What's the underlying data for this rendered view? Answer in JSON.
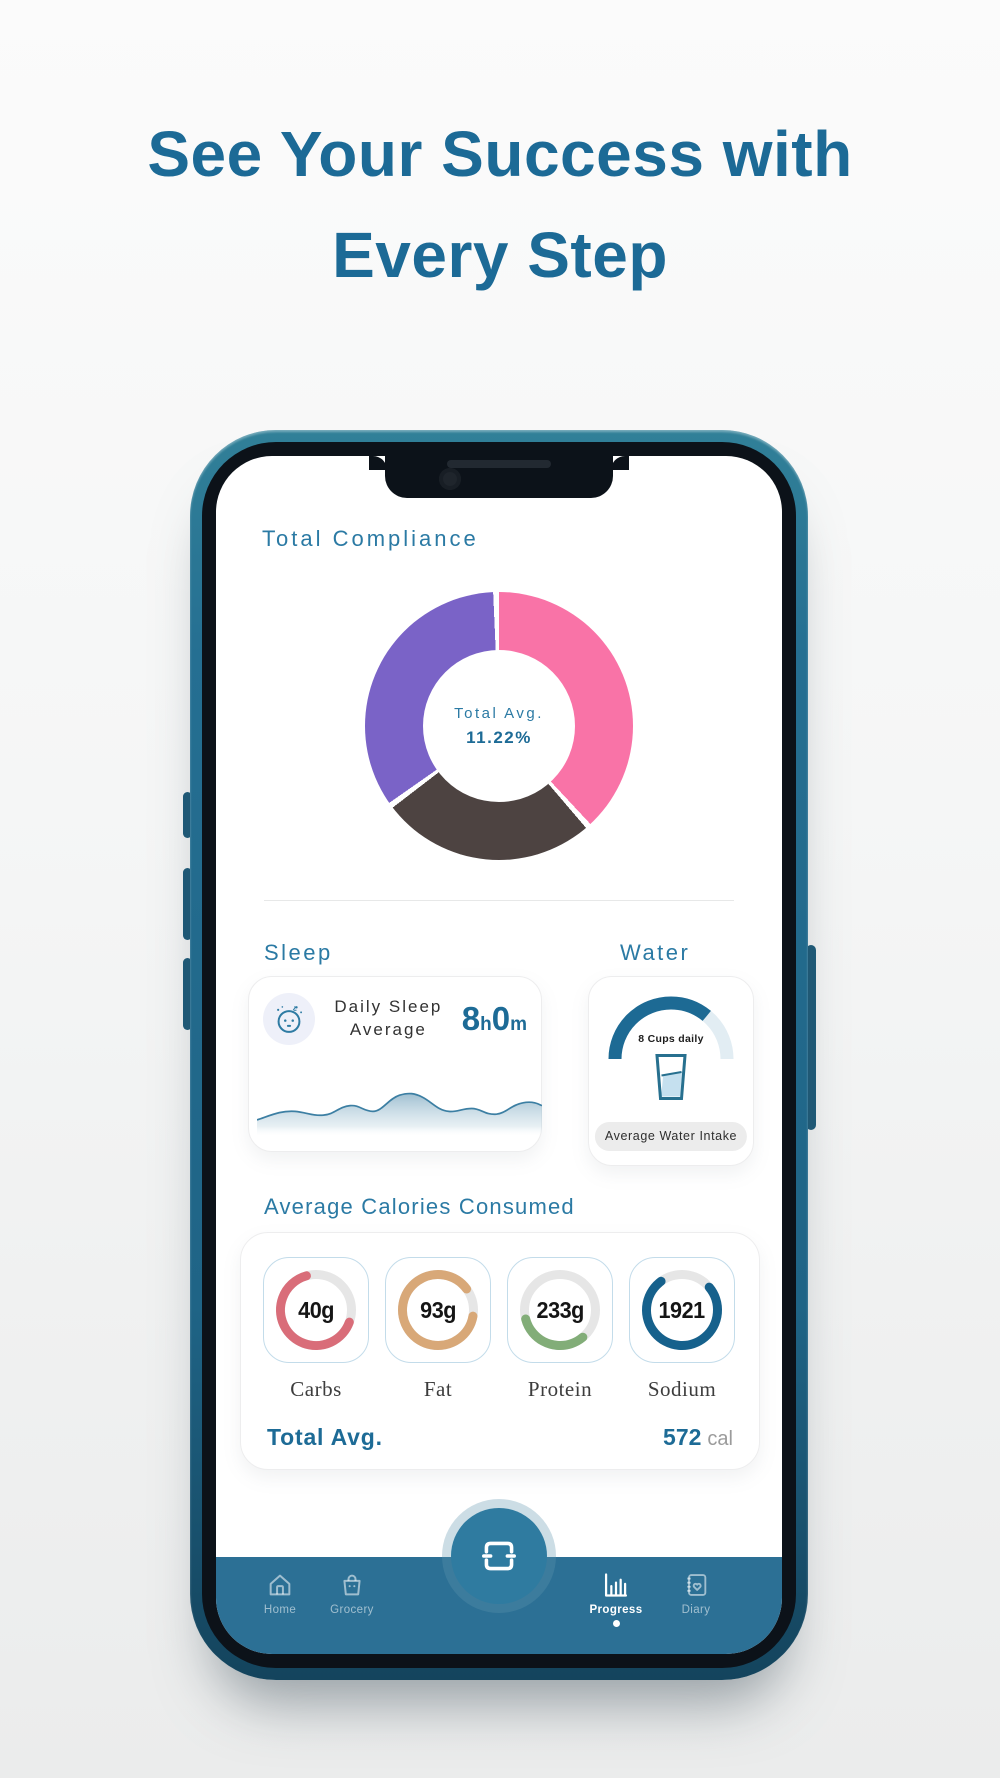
{
  "headline": {
    "line1": "See Your Success with",
    "line2": "Every Step"
  },
  "colors": {
    "headline": "#1c6a96",
    "heading_teal": "#2b7aa4",
    "value_teal": "#1d6b96",
    "phone_frame": "#256f92",
    "navbar": "#2c7095",
    "donut_pink": "#f973a7",
    "donut_charcoal": "#4d4341",
    "donut_purple": "#7a63c7"
  },
  "compliance": {
    "title": "Total Compliance",
    "center_label": "Total Avg.",
    "center_value": "11.22%",
    "donut": {
      "gap_deg": 2.5,
      "segments": [
        {
          "name": "pink",
          "color": "#f973a7",
          "deg": 137
        },
        {
          "name": "charcoal",
          "color": "#4d4341",
          "deg": 93
        },
        {
          "name": "purple",
          "color": "#7a63c7",
          "deg": 122.5
        }
      ]
    }
  },
  "sleep": {
    "heading": "Sleep",
    "label_line1": "Daily Sleep",
    "label_line2": "Average",
    "hours": "8",
    "hours_unit": "h",
    "minutes": "0",
    "minutes_unit": "m"
  },
  "water": {
    "heading": "Water",
    "gauge_label": "8 Cups daily",
    "caption": "Average Water Intake",
    "gauge": {
      "pct": 72,
      "fill": "#1d6a94",
      "track": "#e2edf3"
    }
  },
  "calories": {
    "heading": "Average Calories Consumed",
    "items": [
      {
        "value": "40g",
        "label": "Carbs",
        "color": "#d96d79",
        "pct": 65,
        "start_deg": 110
      },
      {
        "value": "93g",
        "label": "Fat",
        "color": "#d8a878",
        "pct": 87,
        "start_deg": 100
      },
      {
        "value": "233g",
        "label": "Protein",
        "color": "#82ad78",
        "pct": 32,
        "start_deg": 140
      },
      {
        "value": "1921",
        "label": "Sodium",
        "color": "#16618c",
        "pct": 76,
        "start_deg": 50
      }
    ],
    "total_label": "Total Avg.",
    "total_value": "572",
    "total_unit": "cal"
  },
  "nav": {
    "items": [
      {
        "label": "Home",
        "icon": "home-icon",
        "active": false
      },
      {
        "label": "Grocery",
        "icon": "grocery-bag-icon",
        "active": false
      },
      {
        "label": "Progress",
        "icon": "bar-chart-icon",
        "active": true
      },
      {
        "label": "Diary",
        "icon": "diary-icon",
        "active": false
      }
    ],
    "scan_button_icon": "scan-frame-icon"
  },
  "chart_data": [
    {
      "type": "pie",
      "title": "Total Compliance",
      "center_label": "Total Avg.",
      "center_value": "11.22%",
      "slices": [
        {
          "name": "pink",
          "value_pct": 38
        },
        {
          "name": "charcoal",
          "value_pct": 26
        },
        {
          "name": "purple",
          "value_pct": 34
        }
      ],
      "note": "slice sizes estimated from pixels; only center value 11.22% is labeled"
    },
    {
      "type": "area",
      "title": "Daily Sleep Average",
      "value": "8h0m",
      "note": "unlabeled sleep sparkline"
    },
    {
      "type": "gauge",
      "title": "Average Water Intake",
      "label": "8 Cups daily",
      "fill_pct": 72
    },
    {
      "type": "donut-rings",
      "title": "Average Calories Consumed",
      "rings": [
        {
          "label": "Carbs",
          "value": "40g",
          "fill_pct": 65
        },
        {
          "label": "Fat",
          "value": "93g",
          "fill_pct": 87
        },
        {
          "label": "Protein",
          "value": "233g",
          "fill_pct": 32
        },
        {
          "label": "Sodium",
          "value": "1921",
          "fill_pct": 76
        }
      ],
      "total": {
        "label": "Total Avg.",
        "value": 572,
        "unit": "cal"
      }
    }
  ]
}
